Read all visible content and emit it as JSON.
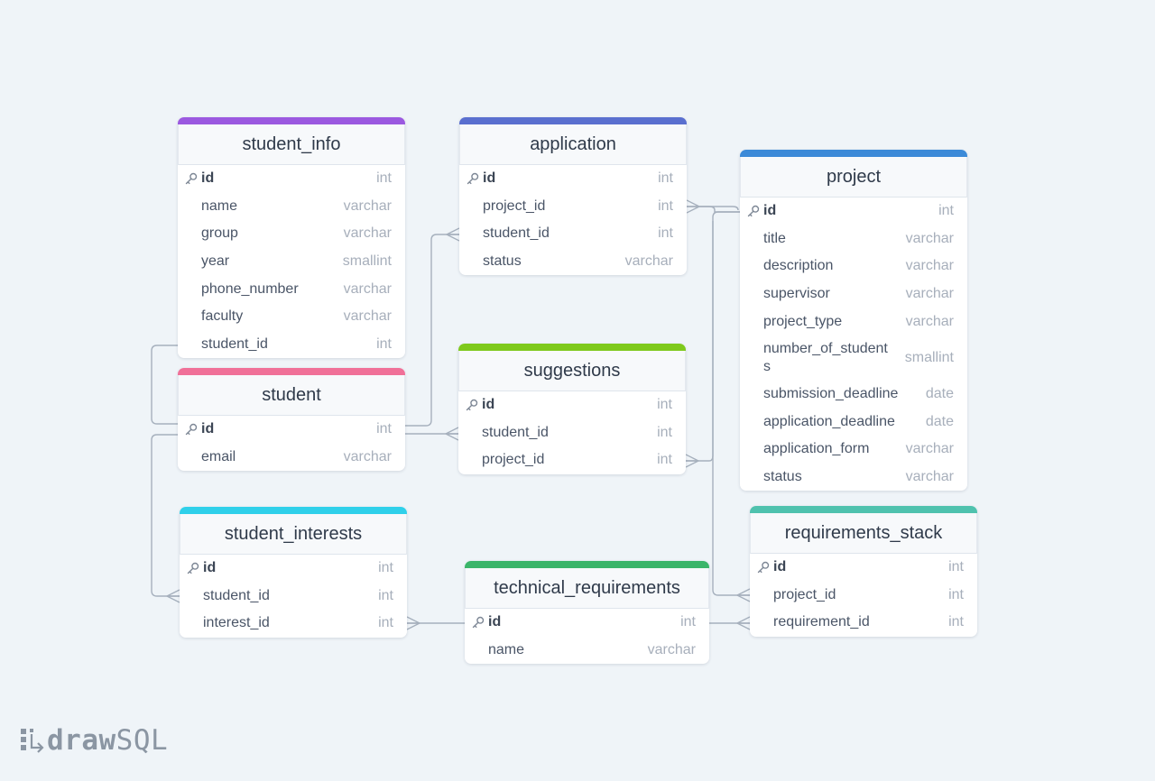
{
  "tables": [
    {
      "name": "student_info",
      "color": "#9b59e0",
      "fields": [
        {
          "name": "id",
          "type": "int",
          "pk": true
        },
        {
          "name": "name",
          "type": "varchar"
        },
        {
          "name": "group",
          "type": "varchar"
        },
        {
          "name": "year",
          "type": "smallint"
        },
        {
          "name": "phone_number",
          "type": "varchar"
        },
        {
          "name": "faculty",
          "type": "varchar"
        },
        {
          "name": "student_id",
          "type": "int"
        }
      ]
    },
    {
      "name": "application",
      "color": "#5a6fcf",
      "fields": [
        {
          "name": "id",
          "type": "int",
          "pk": true
        },
        {
          "name": "project_id",
          "type": "int"
        },
        {
          "name": "student_id",
          "type": "int"
        },
        {
          "name": "status",
          "type": "varchar"
        }
      ]
    },
    {
      "name": "project",
      "color": "#3c8ad8",
      "fields": [
        {
          "name": "id",
          "type": "int",
          "pk": true
        },
        {
          "name": "title",
          "type": "varchar"
        },
        {
          "name": "description",
          "type": "varchar"
        },
        {
          "name": "supervisor",
          "type": "varchar"
        },
        {
          "name": "project_type",
          "type": "varchar"
        },
        {
          "name": "number_of_student\ns",
          "type": "smallint"
        },
        {
          "name": "submission_deadline",
          "type": "date"
        },
        {
          "name": "application_deadline",
          "type": "date"
        },
        {
          "name": "application_form",
          "type": "varchar"
        },
        {
          "name": "status",
          "type": "varchar"
        }
      ]
    },
    {
      "name": "student",
      "color": "#f07098",
      "fields": [
        {
          "name": "id",
          "type": "int",
          "pk": true
        },
        {
          "name": "email",
          "type": "varchar"
        }
      ]
    },
    {
      "name": "suggestions",
      "color": "#7ec91c",
      "fields": [
        {
          "name": "id",
          "type": "int",
          "pk": true
        },
        {
          "name": "student_id",
          "type": "int"
        },
        {
          "name": "project_id",
          "type": "int"
        }
      ]
    },
    {
      "name": "student_interests",
      "color": "#2fd0ea",
      "fields": [
        {
          "name": "id",
          "type": "int",
          "pk": true
        },
        {
          "name": "student_id",
          "type": "int"
        },
        {
          "name": "interest_id",
          "type": "int"
        }
      ]
    },
    {
      "name": "technical_requirements",
      "color": "#3bb56a",
      "fields": [
        {
          "name": "id",
          "type": "int",
          "pk": true
        },
        {
          "name": "name",
          "type": "varchar"
        }
      ]
    },
    {
      "name": "requirements_stack",
      "color": "#4fc2ae",
      "fields": [
        {
          "name": "id",
          "type": "int",
          "pk": true
        },
        {
          "name": "project_id",
          "type": "int"
        },
        {
          "name": "requirement_id",
          "type": "int"
        }
      ]
    }
  ],
  "logo": {
    "bold": "draw",
    "light": "SQL"
  }
}
